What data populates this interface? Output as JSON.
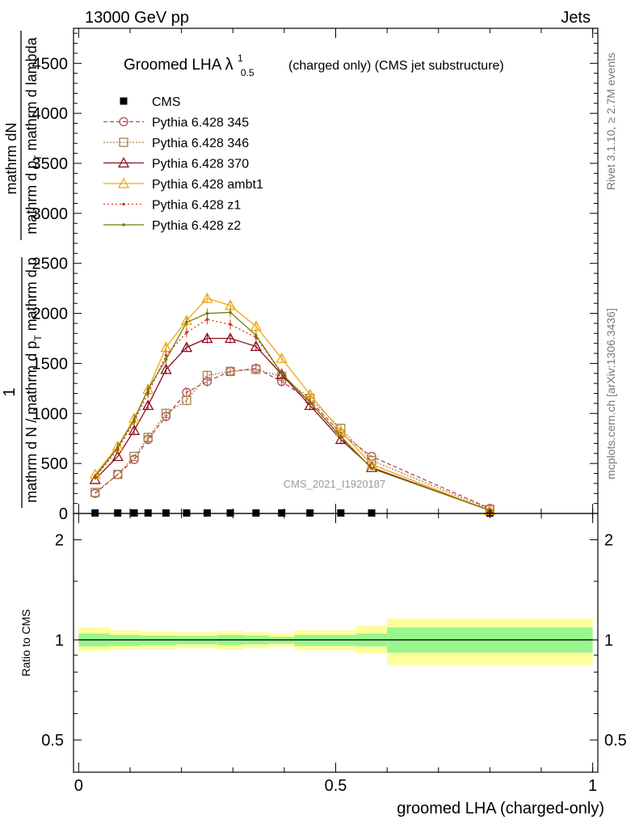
{
  "header": {
    "left": "13000 GeV pp",
    "right": "Jets",
    "side_top": "Rivet 3.1.10, ≥ 2.7M events",
    "side_bottom": "mcplots.cern.ch [arXiv:1306.3436]",
    "watermark": "CMS_2021_I1920187"
  },
  "chart_data": [
    {
      "type": "line",
      "title_prefix": "Groomed LHA ",
      "title_symbol": "λ",
      "title_sup": "1",
      "title_sub": "0.5",
      "title_suffix": "(charged only) (CMS jet substructure)",
      "ylabel_numerator": "1",
      "ylabel_fraction_top": "mathrm dN",
      "ylabel_fraction_bottom": "mathrm d p",
      "ylabel_fraction_sub": "T",
      "ylabel_fraction_tail": " mathrm d lambda",
      "ylabel_outer_bottom": "mathrm d N / mathrm d p",
      "ylabel_outer_sub": "T",
      "ylabel_outer_tail": " mathrm d p",
      "ylim": [
        0,
        4850
      ],
      "xlim": [
        -0.01,
        1.01
      ],
      "yticks": [
        0,
        500,
        1000,
        1500,
        2000,
        2500,
        3000,
        3500,
        4000,
        4500
      ],
      "ytick_labels": [
        "0",
        "500",
        "1000",
        "1500",
        "2000",
        "2500",
        "3000",
        "3500",
        "4000",
        "4500"
      ],
      "legend_position": "top-left",
      "x": [
        0.032,
        0.076,
        0.108,
        0.135,
        0.17,
        0.21,
        0.25,
        0.295,
        0.345,
        0.395,
        0.45,
        0.51,
        0.57,
        0.8
      ],
      "series": [
        {
          "name": "CMS",
          "color": "#000000",
          "marker": "square",
          "dash": "none",
          "values": [
            5,
            5,
            5,
            5,
            5,
            5,
            5,
            5,
            5,
            5,
            5,
            5,
            5,
            5
          ]
        },
        {
          "name": "Pythia 6.428 345",
          "color": "#b5494f",
          "marker": "circle-open",
          "dash": "5,3",
          "values": [
            200,
            390,
            540,
            740,
            970,
            1210,
            1320,
            1420,
            1450,
            1320,
            1130,
            800,
            570,
            50
          ]
        },
        {
          "name": "Pythia 6.428 346",
          "color": "#a5804a",
          "marker": "square-open",
          "dash": "2,2",
          "values": [
            210,
            390,
            570,
            760,
            1000,
            1130,
            1380,
            1420,
            1440,
            1370,
            1150,
            850,
            530,
            40
          ]
        },
        {
          "name": "Pythia 6.428 370",
          "color": "#8c0f1e",
          "marker": "triangle-open",
          "dash": "none",
          "values": [
            340,
            570,
            830,
            1080,
            1440,
            1660,
            1750,
            1750,
            1670,
            1390,
            1080,
            740,
            460,
            30
          ]
        },
        {
          "name": "Pythia 6.428 ambt1",
          "color": "#f0a712",
          "marker": "triangle-open",
          "dash": "none",
          "values": [
            390,
            670,
            950,
            1240,
            1660,
            1930,
            2150,
            2080,
            1870,
            1550,
            1190,
            820,
            490,
            30
          ]
        },
        {
          "name": "Pythia 6.428 z1",
          "color": "#d2361c",
          "marker": "dot",
          "dash": "2,3",
          "values": [
            360,
            640,
            920,
            1200,
            1580,
            1810,
            1940,
            1890,
            1760,
            1400,
            1110,
            760,
            450,
            30
          ]
        },
        {
          "name": "Pythia 6.428 z2",
          "color": "#78780a",
          "marker": "dot",
          "dash": "none",
          "values": [
            370,
            660,
            940,
            1240,
            1540,
            1910,
            2000,
            2010,
            1780,
            1400,
            1110,
            770,
            450,
            30
          ]
        }
      ]
    },
    {
      "type": "area",
      "ylabel": "Ratio to CMS",
      "xlabel": "groomed LHA (charged-only)",
      "ylim": [
        0.4,
        2.4
      ],
      "log_y": true,
      "reference_line": 1.0,
      "yticks": [
        0.5,
        1,
        2
      ],
      "ytick_labels": [
        "0.5",
        "1",
        "2"
      ],
      "xticks": [
        0,
        0.5,
        1
      ],
      "xtick_labels": [
        "0",
        "0.5",
        "1"
      ],
      "band_colors": {
        "inner": "#99f68e",
        "outer": "#fefe9d"
      },
      "bands": [
        {
          "x0": 0.0,
          "x1": 0.06,
          "inner": [
            0.955,
            1.045
          ],
          "outer": [
            0.925,
            1.09
          ]
        },
        {
          "x0": 0.06,
          "x1": 0.12,
          "inner": [
            0.96,
            1.035
          ],
          "outer": [
            0.935,
            1.07
          ]
        },
        {
          "x0": 0.12,
          "x1": 0.19,
          "inner": [
            0.965,
            1.03
          ],
          "outer": [
            0.94,
            1.06
          ]
        },
        {
          "x0": 0.19,
          "x1": 0.27,
          "inner": [
            0.97,
            1.028
          ],
          "outer": [
            0.945,
            1.055
          ]
        },
        {
          "x0": 0.27,
          "x1": 0.27,
          "inner": [
            0.98,
            1.02
          ],
          "outer": [
            0.96,
            1.04
          ]
        },
        {
          "x0": 0.27,
          "x1": 0.32,
          "inner": [
            0.965,
            1.035
          ],
          "outer": [
            0.935,
            1.065
          ]
        },
        {
          "x0": 0.32,
          "x1": 0.37,
          "inner": [
            0.97,
            1.03
          ],
          "outer": [
            0.945,
            1.055
          ]
        },
        {
          "x0": 0.37,
          "x1": 0.42,
          "inner": [
            0.975,
            1.02
          ],
          "outer": [
            0.955,
            1.045
          ]
        },
        {
          "x0": 0.42,
          "x1": 0.54,
          "inner": [
            0.96,
            1.035
          ],
          "outer": [
            0.93,
            1.07
          ]
        },
        {
          "x0": 0.54,
          "x1": 0.6,
          "inner": [
            0.955,
            1.045
          ],
          "outer": [
            0.91,
            1.105
          ]
        },
        {
          "x0": 0.6,
          "x1": 1.0,
          "inner": [
            0.915,
            1.09
          ],
          "outer": [
            0.84,
            1.16
          ]
        }
      ]
    }
  ]
}
